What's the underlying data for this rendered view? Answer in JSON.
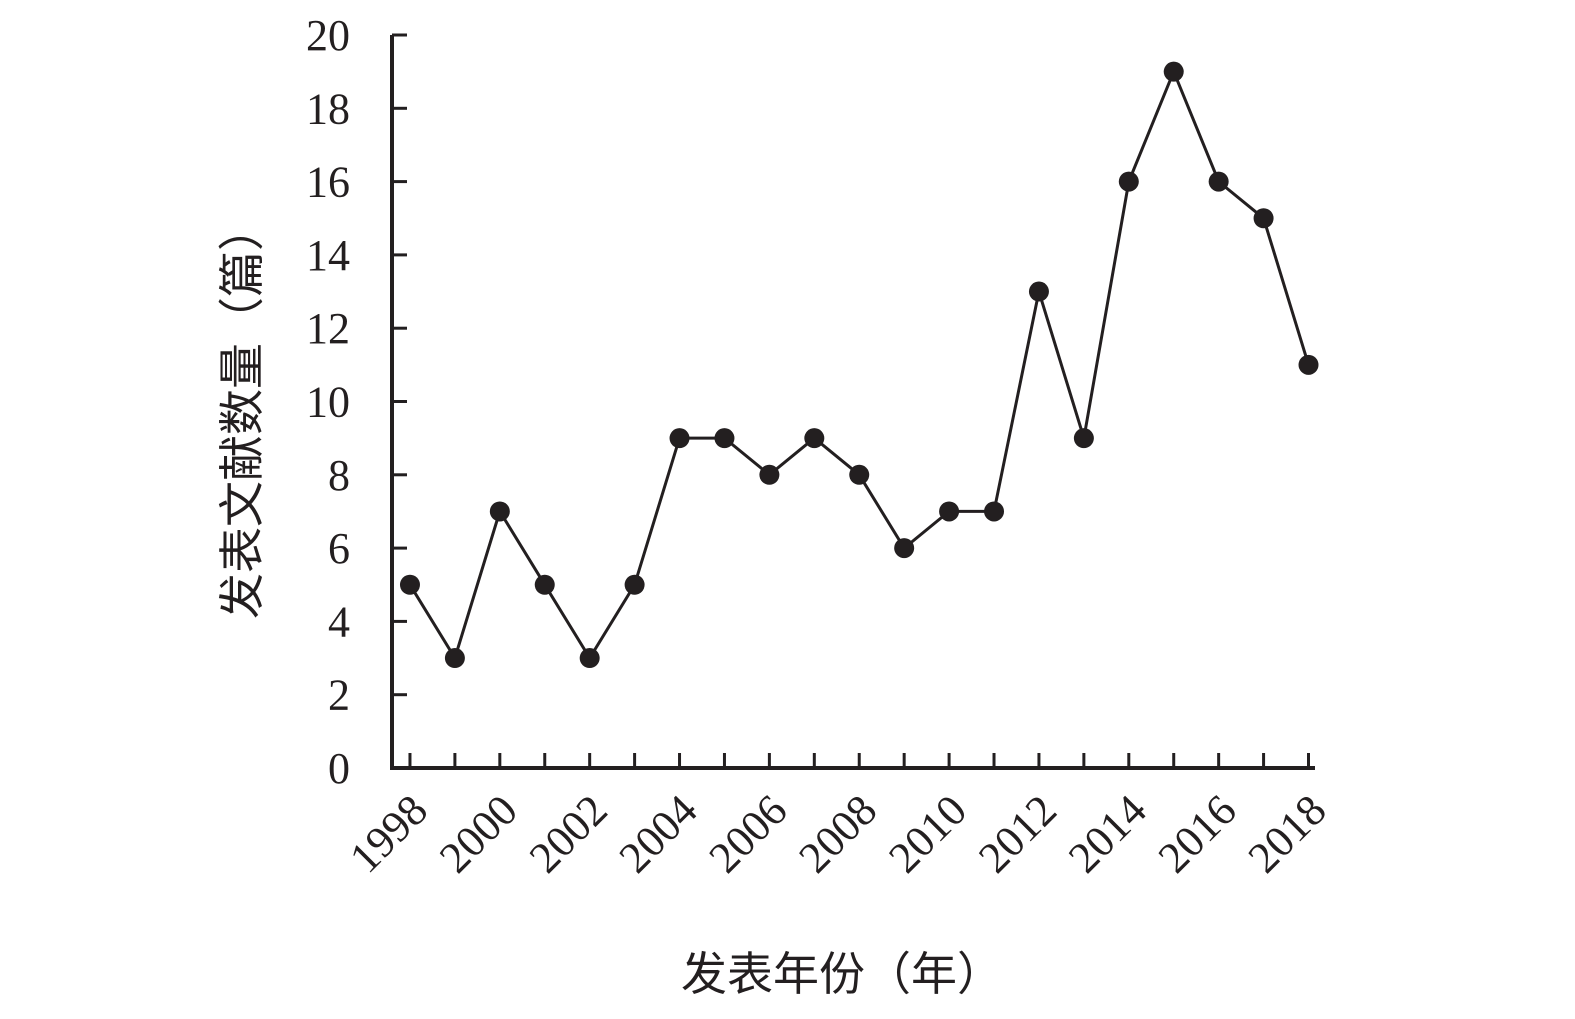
{
  "chart_data": {
    "type": "line",
    "title": "",
    "xlabel": "发表年份（年）",
    "ylabel": "发表文献数量（篇）",
    "x": [
      1998,
      1999,
      2000,
      2001,
      2002,
      2003,
      2004,
      2005,
      2006,
      2007,
      2008,
      2009,
      2010,
      2011,
      2012,
      2013,
      2014,
      2015,
      2016,
      2017,
      2018
    ],
    "series": [
      {
        "values": [
          5,
          3,
          7,
          5,
          3,
          5,
          9,
          9,
          8,
          9,
          8,
          6,
          7,
          7,
          13,
          9,
          16,
          19,
          16,
          15,
          11
        ]
      }
    ],
    "x_tick_labels": [
      "1998",
      "2000",
      "2002",
      "2004",
      "2006",
      "2008",
      "2010",
      "2012",
      "2014",
      "2016",
      "2018"
    ],
    "y_tick_labels": [
      "0",
      "2",
      "4",
      "6",
      "8",
      "10",
      "12",
      "14",
      "16",
      "18",
      "20"
    ],
    "xlim": [
      1997.6,
      2018.1
    ],
    "ylim": [
      0,
      20
    ],
    "grid": false,
    "legend": "none",
    "colors": {
      "line": "#231f20",
      "marker": "#231f20",
      "axis": "#231f20",
      "text": "#231f20"
    }
  }
}
